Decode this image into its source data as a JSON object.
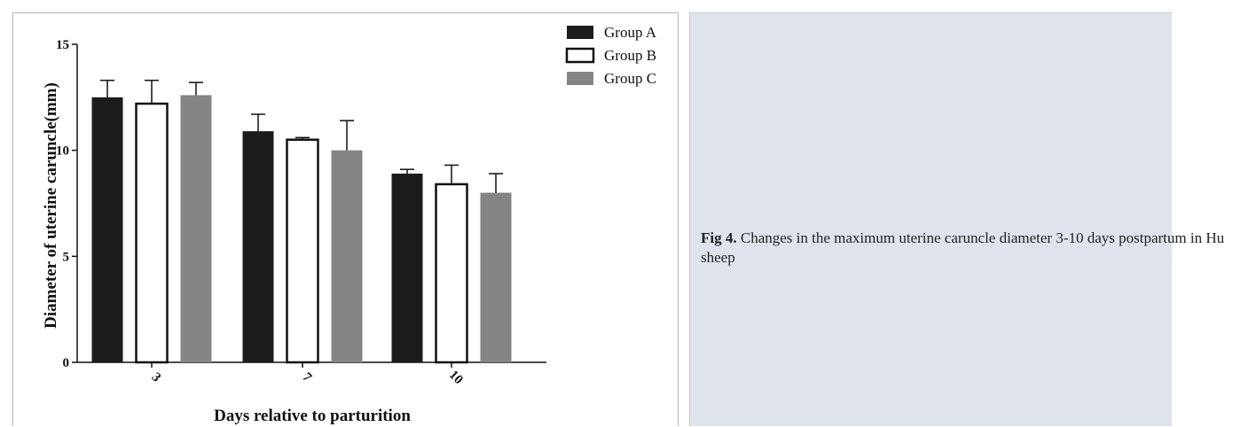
{
  "chart_data": {
    "type": "bar",
    "categories": [
      "3",
      "7",
      "10"
    ],
    "series": [
      {
        "name": "Group A",
        "values": [
          12.5,
          10.9,
          8.9
        ],
        "errors": [
          0.8,
          0.8,
          0.2
        ],
        "color": "#1c1c1c",
        "style": "filled"
      },
      {
        "name": "Group B",
        "values": [
          12.2,
          10.5,
          8.4
        ],
        "errors": [
          1.1,
          0.1,
          0.9
        ],
        "color": "#ffffff",
        "style": "outline"
      },
      {
        "name": "Group C",
        "values": [
          12.6,
          10.0,
          8.0
        ],
        "errors": [
          0.6,
          1.4,
          0.9
        ],
        "color": "#858585",
        "style": "filled"
      }
    ],
    "xlabel": "Days relative to parturition",
    "ylabel": "Diameter of uterine caruncle(mm)",
    "ylim": [
      0,
      15
    ],
    "yticks": [
      "0",
      "5",
      "10",
      "15"
    ],
    "grid": false,
    "legend": "top-right"
  },
  "caption": {
    "label": "Fig 4.",
    "text": "Changes in the maximum uterine caruncle diameter 3-10 days postpartum in Hu sheep"
  }
}
